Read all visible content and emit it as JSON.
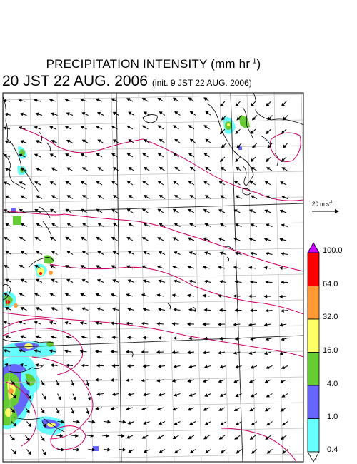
{
  "title": {
    "main": "PRECIPITATION INTENSITY (mm hr",
    "unit_exp": "-1",
    "close": ")"
  },
  "subtitle": {
    "valid_time": "20 JST 22 AUG. 2006",
    "init_time": "(init. 9 JST 22 AUG. 2006)"
  },
  "wind_scale": {
    "label_base": "20 m s",
    "label_exp": "-1"
  },
  "legend": {
    "levels": [
      "100.0",
      "64.0",
      "32.0",
      "16.0",
      "4.0",
      "1.0",
      "0.4"
    ],
    "colors": [
      "#cc00ff",
      "#ff0000",
      "#ff9933",
      "#ffff66",
      "#66cc33",
      "#6666ff",
      "#66ffff",
      "#ffffff"
    ]
  },
  "map": {
    "contour_color": "#cc0066",
    "grid_color": "#bbbbbb",
    "coast_color": "#000000"
  }
}
